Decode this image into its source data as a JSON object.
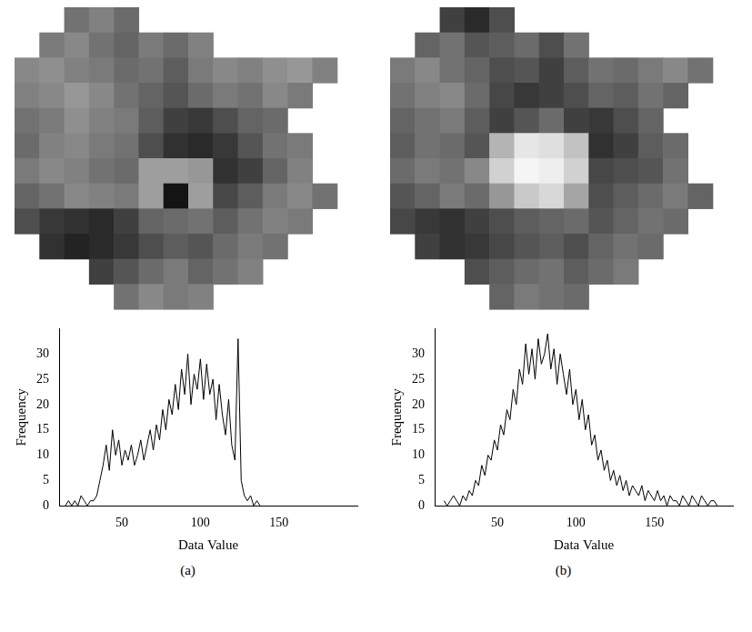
{
  "chart_data": [
    {
      "type": "heatmap",
      "tick_labels": false,
      "cells": [
        [
          null,
          null,
          95,
          105,
          90,
          null,
          null,
          null,
          null,
          null,
          null,
          null,
          null,
          null
        ],
        [
          null,
          100,
          110,
          95,
          85,
          100,
          90,
          105,
          null,
          null,
          null,
          null,
          null,
          null
        ],
        [
          110,
          115,
          105,
          100,
          90,
          95,
          80,
          100,
          110,
          105,
          115,
          120,
          105,
          null
        ],
        [
          105,
          110,
          120,
          110,
          95,
          85,
          75,
          90,
          100,
          95,
          110,
          100,
          null,
          null
        ],
        [
          95,
          100,
          115,
          105,
          100,
          80,
          60,
          55,
          70,
          85,
          90,
          null,
          null,
          null
        ],
        [
          90,
          105,
          110,
          100,
          95,
          70,
          50,
          45,
          55,
          75,
          95,
          100,
          null,
          null
        ],
        [
          100,
          110,
          105,
          95,
          90,
          125,
          125,
          120,
          50,
          60,
          85,
          105,
          null,
          null
        ],
        [
          85,
          95,
          110,
          105,
          100,
          125,
          30,
          125,
          65,
          80,
          100,
          110,
          95,
          null
        ],
        [
          70,
          55,
          50,
          45,
          60,
          85,
          90,
          95,
          80,
          95,
          105,
          100,
          null,
          null
        ],
        [
          null,
          50,
          40,
          45,
          55,
          70,
          80,
          75,
          90,
          100,
          95,
          null,
          null,
          null
        ],
        [
          null,
          null,
          null,
          60,
          75,
          90,
          100,
          85,
          95,
          105,
          null,
          null,
          null,
          null
        ],
        [
          null,
          null,
          null,
          null,
          95,
          110,
          100,
          105,
          null,
          null,
          null,
          null,
          null,
          null
        ]
      ]
    },
    {
      "type": "line",
      "caption": "(a)",
      "x_label": "Data Value",
      "y_label": "Frequency",
      "color": "#000000",
      "grid": false,
      "xlim": [
        10,
        200
      ],
      "xticks": [
        50,
        100,
        150
      ],
      "ylim": [
        0,
        35
      ],
      "yticks": [
        0,
        5,
        10,
        15,
        20,
        25,
        30
      ],
      "x": [
        14,
        16,
        18,
        20,
        22,
        24,
        26,
        28,
        30,
        32,
        34,
        36,
        38,
        40,
        42,
        44,
        46,
        48,
        50,
        52,
        54,
        56,
        58,
        60,
        62,
        64,
        66,
        68,
        70,
        72,
        74,
        76,
        78,
        80,
        82,
        84,
        86,
        88,
        90,
        92,
        94,
        96,
        98,
        100,
        102,
        104,
        106,
        108,
        110,
        112,
        114,
        116,
        118,
        120,
        122,
        124,
        126,
        128,
        130,
        132,
        134,
        136,
        138
      ],
      "values": [
        0,
        1,
        0,
        1,
        0,
        2,
        1,
        0,
        1,
        1,
        2,
        5,
        8,
        12,
        7,
        15,
        10,
        13,
        8,
        11,
        9,
        12,
        8,
        10,
        13,
        9,
        12,
        15,
        11,
        16,
        13,
        19,
        15,
        21,
        18,
        24,
        19,
        27,
        22,
        30,
        20,
        26,
        23,
        29,
        21,
        28,
        22,
        25,
        17,
        24,
        18,
        14,
        21,
        12,
        9,
        33,
        5,
        2,
        1,
        2,
        0,
        1,
        0
      ]
    },
    {
      "type": "heatmap",
      "tick_labels": false,
      "cells": [
        [
          null,
          null,
          60,
          45,
          70,
          null,
          null,
          null,
          null,
          null,
          null,
          null,
          null,
          null
        ],
        [
          null,
          85,
          95,
          75,
          80,
          90,
          70,
          95,
          null,
          null,
          null,
          null,
          null,
          null
        ],
        [
          100,
          110,
          95,
          85,
          70,
          75,
          60,
          80,
          95,
          90,
          100,
          110,
          95,
          null
        ],
        [
          95,
          105,
          110,
          90,
          65,
          55,
          60,
          70,
          85,
          80,
          95,
          85,
          null,
          null
        ],
        [
          85,
          95,
          100,
          80,
          60,
          75,
          90,
          60,
          55,
          70,
          85,
          null,
          null,
          null
        ],
        [
          80,
          95,
          90,
          75,
          140,
          175,
          170,
          150,
          50,
          60,
          80,
          90,
          null,
          null
        ],
        [
          90,
          100,
          95,
          110,
          160,
          185,
          180,
          160,
          65,
          70,
          75,
          95,
          null,
          null
        ],
        [
          75,
          85,
          100,
          90,
          120,
          155,
          165,
          130,
          70,
          80,
          90,
          100,
          85,
          null
        ],
        [
          65,
          55,
          50,
          60,
          70,
          80,
          85,
          90,
          75,
          85,
          95,
          90,
          null,
          null
        ],
        [
          null,
          60,
          50,
          55,
          65,
          75,
          80,
          70,
          85,
          95,
          90,
          null,
          null,
          null
        ],
        [
          null,
          null,
          null,
          70,
          80,
          90,
          95,
          80,
          90,
          100,
          null,
          null,
          null,
          null
        ],
        [
          null,
          null,
          null,
          null,
          85,
          100,
          95,
          90,
          null,
          null,
          null,
          null,
          null,
          null
        ]
      ]
    },
    {
      "type": "line",
      "caption": "(b)",
      "x_label": "Data Value",
      "y_label": "Frequency",
      "color": "#000000",
      "grid": false,
      "xlim": [
        10,
        200
      ],
      "xticks": [
        50,
        100,
        150
      ],
      "ylim": [
        0,
        35
      ],
      "yticks": [
        0,
        5,
        10,
        15,
        20,
        25,
        30
      ],
      "x": [
        16,
        18,
        20,
        22,
        24,
        26,
        28,
        30,
        32,
        34,
        36,
        38,
        40,
        42,
        44,
        46,
        48,
        50,
        52,
        54,
        56,
        58,
        60,
        62,
        64,
        66,
        68,
        70,
        72,
        74,
        76,
        78,
        80,
        82,
        84,
        86,
        88,
        90,
        92,
        94,
        96,
        98,
        100,
        102,
        104,
        106,
        108,
        110,
        112,
        114,
        116,
        118,
        120,
        122,
        124,
        126,
        128,
        130,
        132,
        134,
        136,
        138,
        140,
        142,
        144,
        146,
        148,
        150,
        152,
        154,
        156,
        158,
        160,
        162,
        164,
        166,
        168,
        170,
        172,
        174,
        176,
        178,
        180,
        182,
        184,
        186,
        188,
        190
      ],
      "values": [
        1,
        0,
        1,
        2,
        1,
        0,
        2,
        1,
        3,
        2,
        5,
        4,
        8,
        6,
        10,
        9,
        13,
        11,
        16,
        14,
        19,
        17,
        23,
        20,
        27,
        24,
        32,
        26,
        31,
        25,
        33,
        28,
        30,
        34,
        27,
        31,
        24,
        30,
        26,
        22,
        27,
        20,
        23,
        17,
        21,
        15,
        18,
        12,
        14,
        9,
        11,
        7,
        9,
        5,
        7,
        4,
        6,
        3,
        5,
        2,
        4,
        3,
        2,
        4,
        1,
        3,
        2,
        1,
        3,
        1,
        2,
        0,
        2,
        1,
        1,
        0,
        2,
        1,
        0,
        2,
        1,
        0,
        2,
        1,
        0,
        1,
        1,
        0
      ]
    }
  ]
}
